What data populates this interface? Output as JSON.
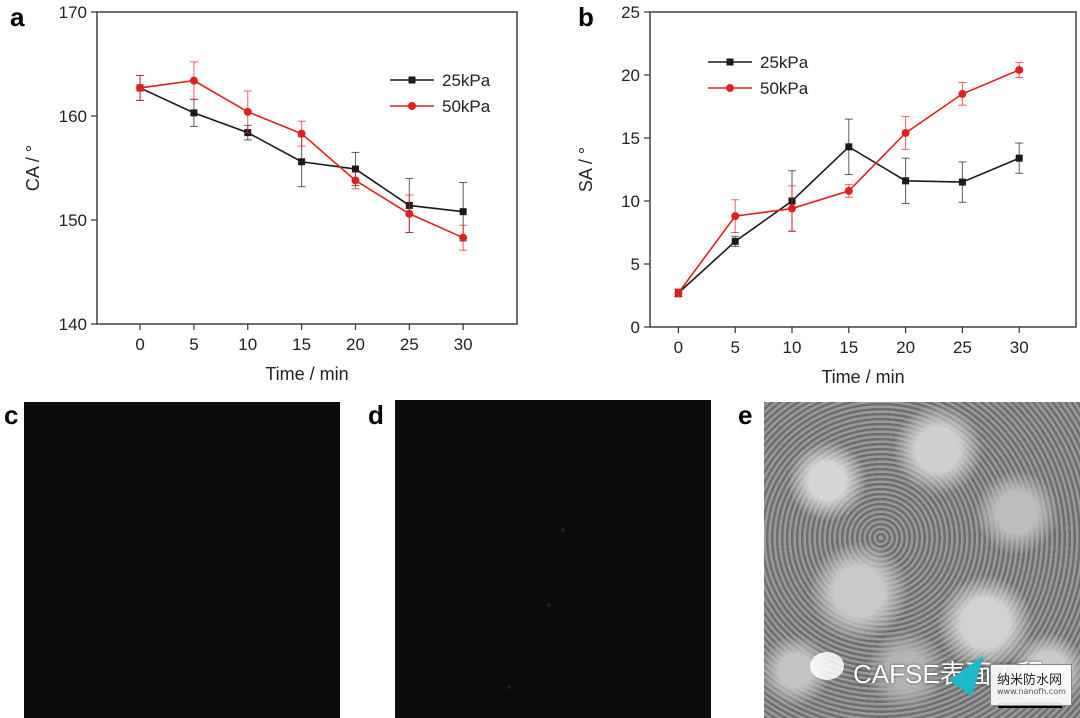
{
  "panels": {
    "a": "a",
    "b": "b",
    "c": "c",
    "d": "d",
    "e": "e"
  },
  "chart_data": [
    {
      "id": "a",
      "type": "line",
      "xlabel": "Time / min",
      "ylabel": "CA / °",
      "x": [
        0,
        5,
        10,
        15,
        20,
        25,
        30
      ],
      "xlim": [
        -4,
        35
      ],
      "ylim": [
        140,
        170
      ],
      "xticks": [
        0,
        5,
        10,
        15,
        20,
        25,
        30
      ],
      "yticks": [
        140,
        150,
        160,
        170
      ],
      "legend_position": "top-right",
      "series": [
        {
          "name": "25kPa",
          "color": "#1a1a1a",
          "marker": "square",
          "values": [
            162.7,
            160.3,
            158.4,
            155.6,
            154.9,
            151.4,
            150.8
          ],
          "errors": [
            1.2,
            1.3,
            0.7,
            2.4,
            1.6,
            2.6,
            2.8
          ]
        },
        {
          "name": "50kPa",
          "color": "#e02020",
          "marker": "circle",
          "values": [
            162.7,
            163.4,
            160.4,
            158.3,
            153.8,
            150.6,
            148.3
          ],
          "errors": [
            1.2,
            1.8,
            2.0,
            1.2,
            0.8,
            1.8,
            1.2
          ]
        }
      ]
    },
    {
      "id": "b",
      "type": "line",
      "xlabel": "Time / min",
      "ylabel": "SA / °",
      "x": [
        0,
        5,
        10,
        15,
        20,
        25,
        30
      ],
      "xlim": [
        -2.5,
        35
      ],
      "ylim": [
        0,
        25
      ],
      "xticks": [
        0,
        5,
        10,
        15,
        20,
        25,
        30
      ],
      "yticks": [
        0,
        5,
        10,
        15,
        20,
        25
      ],
      "legend_position": "top-left",
      "series": [
        {
          "name": "25kPa",
          "color": "#1a1a1a",
          "marker": "square",
          "values": [
            2.7,
            6.8,
            10.0,
            14.3,
            11.6,
            11.5,
            13.4
          ],
          "errors": [
            0.3,
            0.4,
            2.4,
            2.2,
            1.8,
            1.6,
            1.2
          ]
        },
        {
          "name": "50kPa",
          "color": "#e02020",
          "marker": "circle",
          "values": [
            2.7,
            8.8,
            9.4,
            10.8,
            15.4,
            18.5,
            20.4
          ],
          "errors": [
            0.3,
            1.3,
            1.8,
            0.5,
            1.3,
            0.9,
            0.6
          ]
        }
      ]
    }
  ],
  "watermark": {
    "text": "CAFSE表面工程",
    "box_title": "纳米防水网",
    "box_sub": "www.nanofh.com"
  }
}
